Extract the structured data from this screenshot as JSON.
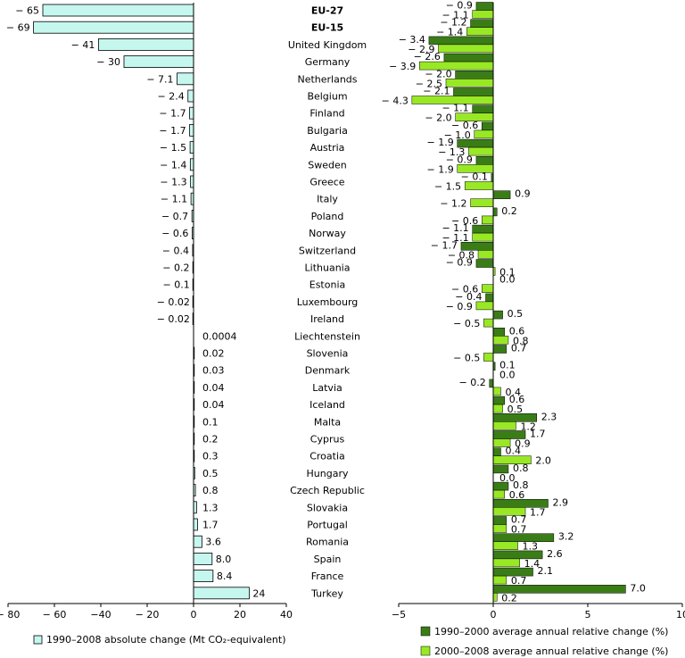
{
  "chart_data": [
    {
      "type": "bar",
      "orientation": "horizontal",
      "xlim": [
        -80,
        40
      ],
      "xticks": [
        -80,
        -60,
        -40,
        -20,
        0,
        20,
        40
      ],
      "xtick_labels": [
        "− 80",
        "− 60",
        "−40",
        "− 20",
        "0",
        "20",
        "40"
      ],
      "legend": "1990–2008 absolute change (Mt CO₂-equivalent)",
      "categories": [
        "EU-27",
        "EU-15",
        "United Kingdom",
        "Germany",
        "Netherlands",
        "Belgium",
        "Finland",
        "Bulgaria",
        "Austria",
        "Sweden",
        "Greece",
        "Italy",
        "Poland",
        "Norway",
        "Switzerland",
        "Lithuania",
        "Estonia",
        "Luxembourg",
        "Ireland",
        "Liechtenstein",
        "Slovenia",
        "Denmark",
        "Latvia",
        "Iceland",
        "Malta",
        "Cyprus",
        "Croatia",
        "Hungary",
        "Czech Republic",
        "Slovakia",
        "Portugal",
        "Romania",
        "Spain",
        "France",
        "Turkey"
      ],
      "bold_categories": [
        "EU-27",
        "EU-15"
      ],
      "values": [
        -65,
        -69,
        -41,
        -30,
        -7.1,
        -2.4,
        -1.7,
        -1.7,
        -1.5,
        -1.4,
        -1.3,
        -1.1,
        -0.7,
        -0.6,
        -0.4,
        -0.2,
        -0.1,
        -0.02,
        -0.02,
        0.0004,
        0.02,
        0.03,
        0.04,
        0.04,
        0.1,
        0.2,
        0.3,
        0.5,
        0.8,
        1.3,
        1.7,
        3.6,
        8.0,
        8.4,
        24
      ],
      "labels": [
        "− 65",
        "− 69",
        "− 41",
        "− 30",
        "− 7.1",
        "− 2.4",
        "− 1.7",
        "− 1.7",
        "− 1.5",
        "− 1.4",
        "− 1.3",
        "− 1.1",
        "− 0.7",
        "− 0.6",
        "− 0.4",
        "− 0.2",
        "− 0.1",
        "− 0.02",
        "− 0.02",
        "0.0004",
        "0.02",
        "0.03",
        "0.04",
        "0.04",
        "0.1",
        "0.2",
        "0.3",
        "0.5",
        "0.8",
        "1.3",
        "1.7",
        "3.6",
        "8.0",
        "8.4",
        "24"
      ]
    },
    {
      "type": "bar",
      "orientation": "horizontal",
      "xlim": [
        -5,
        10
      ],
      "xticks": [
        -5,
        0,
        5,
        10
      ],
      "xtick_labels": [
        "−5",
        "0",
        "5",
        "10"
      ],
      "series": [
        {
          "name": "1990–2000 average annual relative change (%)",
          "color": "#3a7d17",
          "values": [
            -0.9,
            -1.2,
            -3.4,
            -2.6,
            -2.0,
            -2.1,
            -1.1,
            -0.6,
            -1.9,
            -0.9,
            -0.1,
            0.9,
            0.2,
            -1.1,
            -1.7,
            -0.9,
            0.0,
            -0.4,
            0.5,
            0.6,
            0.7,
            0.1,
            -0.2,
            0.6,
            2.3,
            1.7,
            0.4,
            0.8,
            0.8,
            2.9,
            0.7,
            3.2,
            2.6,
            2.1,
            7.0
          ],
          "labels": [
            "− 0.9",
            "− 1.2",
            "− 3.4",
            "− 2.6",
            "− 2.0",
            "− 2.1",
            "− 1.1",
            "− 0.6",
            "− 1.9",
            "− 0.9",
            "− 0.1",
            "0.9",
            "0.2",
            "− 1.1",
            "− 1.7",
            "− 0.9",
            "0.0",
            "− 0.4",
            "0.5",
            "0.6",
            "0.7",
            "0.1",
            "− 0.2",
            "0.6",
            "2.3",
            "1.7",
            "0.4",
            "0.8",
            "0.8",
            "2.9",
            "0.7",
            "3.2",
            "2.6",
            "2.1",
            "7.0"
          ]
        },
        {
          "name": "2000–2008 average annual relative change (%)",
          "color": "#99e825",
          "values": [
            -1.1,
            -1.4,
            -2.9,
            -3.9,
            -2.5,
            -4.3,
            -2.0,
            -1.0,
            -1.3,
            -1.9,
            -1.5,
            -1.2,
            -0.6,
            -1.1,
            -0.8,
            0.1,
            -0.6,
            -0.9,
            -0.5,
            0.8,
            -0.5,
            0.0,
            0.4,
            0.5,
            1.2,
            0.9,
            2.0,
            0.0,
            0.6,
            1.7,
            0.7,
            1.3,
            1.4,
            0.7,
            0.2
          ],
          "labels": [
            "− 1.1",
            "− 1.4",
            "− 2.9",
            "− 3.9",
            "− 2.5",
            "− 4.3",
            "− 2.0",
            "− 1.0",
            "− 1.3",
            "− 1.9",
            "− 1.5",
            "− 1.2",
            "− 0.6",
            "− 1.1",
            "− 0.8",
            "0.1",
            "− 0.6",
            "− 0.9",
            "− 0.5",
            "0.8",
            "− 0.5",
            "0.0",
            "0.4",
            "0.5",
            "1.2",
            "0.9",
            "2.0",
            "0.0",
            "0.6",
            "1.7",
            "0.7",
            "1.3",
            "1.4",
            "0.7",
            "0.2"
          ]
        }
      ]
    }
  ]
}
